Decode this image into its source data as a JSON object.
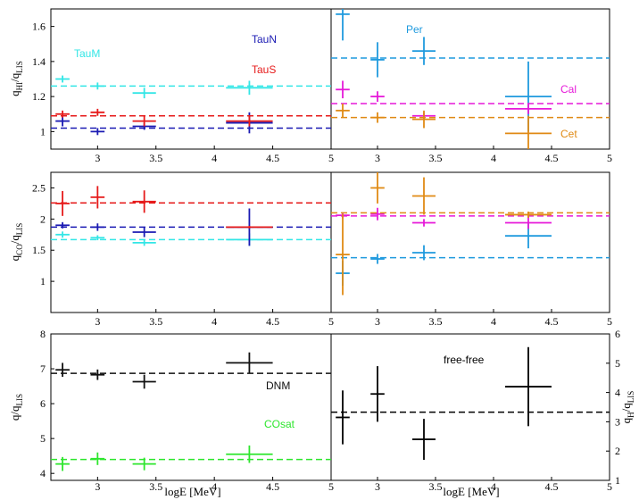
{
  "figure": {
    "xlabel": "logE [MeV]",
    "x_ticks": [
      "3",
      "3.5",
      "4",
      "4.5",
      "5"
    ]
  },
  "colors": {
    "TauM": "#33e6e6",
    "TauN": "#1a1ab3",
    "TauS": "#e61a1a",
    "Per": "#1f9ade",
    "Cal": "#e619d9",
    "Cet": "#e08a14",
    "DNM": "#111111",
    "COsat": "#2ee62e",
    "freefree": "#000000"
  },
  "chart_data": [
    {
      "id": "hi-left",
      "type": "scatter",
      "ylabel_main": "q",
      "ylabel_sub1": "HI",
      "ylabel_mid": "/q",
      "ylabel_sub2": "LIS",
      "xlim": [
        2.6,
        5.0
      ],
      "ylim": [
        0.9,
        1.7
      ],
      "y_ticks": [
        1,
        1.2,
        1.4,
        1.6
      ],
      "y_tick_labels": [
        "1",
        "1.2",
        "1.4",
        "1.6"
      ],
      "series": [
        {
          "name": "TauM",
          "label_text": "TauM",
          "mean": 1.26,
          "points": [
            {
              "x": 2.7,
              "xerr": 0.06,
              "y": 1.3,
              "yerr": 0.02
            },
            {
              "x": 3.0,
              "xerr": 0.06,
              "y": 1.26,
              "yerr": 0.02
            },
            {
              "x": 3.4,
              "xerr": 0.1,
              "y": 1.22,
              "yerr": 0.03
            },
            {
              "x": 4.3,
              "xerr": 0.2,
              "y": 1.25,
              "yerr": 0.04
            }
          ]
        },
        {
          "name": "TauN",
          "label_text": "TauN",
          "mean": 1.02,
          "points": [
            {
              "x": 2.7,
              "xerr": 0.06,
              "y": 1.06,
              "yerr": 0.03
            },
            {
              "x": 3.0,
              "xerr": 0.06,
              "y": 1.0,
              "yerr": 0.02
            },
            {
              "x": 3.4,
              "xerr": 0.1,
              "y": 1.03,
              "yerr": 0.02
            },
            {
              "x": 4.3,
              "xerr": 0.2,
              "y": 1.05,
              "yerr": 0.06
            }
          ]
        },
        {
          "name": "TauS",
          "label_text": "TauS",
          "mean": 1.09,
          "points": [
            {
              "x": 2.7,
              "xerr": 0.06,
              "y": 1.1,
              "yerr": 0.02
            },
            {
              "x": 3.0,
              "xerr": 0.06,
              "y": 1.11,
              "yerr": 0.02
            },
            {
              "x": 3.4,
              "xerr": 0.1,
              "y": 1.06,
              "yerr": 0.03
            },
            {
              "x": 4.3,
              "xerr": 0.2,
              "y": 1.06,
              "yerr": 0.03
            }
          ]
        }
      ]
    },
    {
      "id": "hi-right",
      "type": "scatter",
      "xlim": [
        2.6,
        5.0
      ],
      "ylim": [
        0.9,
        1.7
      ],
      "series": [
        {
          "name": "Per",
          "label_text": "Per",
          "mean": 1.42,
          "points": [
            {
              "x": 2.7,
              "xerr": 0.06,
              "y": 1.67,
              "yerr": 0.15
            },
            {
              "x": 3.0,
              "xerr": 0.06,
              "y": 1.41,
              "yerr": 0.1
            },
            {
              "x": 3.4,
              "xerr": 0.1,
              "y": 1.46,
              "yerr": 0.08
            },
            {
              "x": 4.3,
              "xerr": 0.2,
              "y": 1.2,
              "yerr": 0.2
            }
          ]
        },
        {
          "name": "Cal",
          "label_text": "Cal",
          "mean": 1.16,
          "points": [
            {
              "x": 2.7,
              "xerr": 0.06,
              "y": 1.24,
              "yerr": 0.05
            },
            {
              "x": 3.0,
              "xerr": 0.06,
              "y": 1.2,
              "yerr": 0.03
            },
            {
              "x": 3.4,
              "xerr": 0.1,
              "y": 1.09,
              "yerr": 0.02
            },
            {
              "x": 4.3,
              "xerr": 0.2,
              "y": 1.13,
              "yerr": 0.03
            }
          ]
        },
        {
          "name": "Cet",
          "label_text": "Cet",
          "mean": 1.08,
          "points": [
            {
              "x": 2.7,
              "xerr": 0.06,
              "y": 1.12,
              "yerr": 0.04
            },
            {
              "x": 3.0,
              "xerr": 0.06,
              "y": 1.08,
              "yerr": 0.03
            },
            {
              "x": 3.4,
              "xerr": 0.1,
              "y": 1.07,
              "yerr": 0.05
            },
            {
              "x": 4.3,
              "xerr": 0.2,
              "y": 0.99,
              "yerr": 0.1
            }
          ]
        }
      ]
    },
    {
      "id": "co-left",
      "type": "scatter",
      "ylabel_main": "q",
      "ylabel_sub1": "CO",
      "ylabel_mid": "/q",
      "ylabel_sub2": "LIS",
      "xlim": [
        2.6,
        5.0
      ],
      "ylim": [
        0.5,
        2.75
      ],
      "y_ticks": [
        1,
        1.5,
        2,
        2.5
      ],
      "y_tick_labels": [
        "1",
        "1.5",
        "2",
        "2.5"
      ],
      "series": [
        {
          "name": "TauM",
          "mean": 1.67,
          "points": [
            {
              "x": 2.7,
              "xerr": 0.06,
              "y": 1.75,
              "yerr": 0.05
            },
            {
              "x": 3.0,
              "xerr": 0.06,
              "y": 1.7,
              "yerr": 0.04
            },
            {
              "x": 3.4,
              "xerr": 0.1,
              "y": 1.62,
              "yerr": 0.05
            },
            {
              "x": 4.3,
              "xerr": 0.2,
              "y": 1.67,
              "yerr": 0.1
            }
          ]
        },
        {
          "name": "TauN",
          "mean": 1.87,
          "points": [
            {
              "x": 2.7,
              "xerr": 0.06,
              "y": 1.9,
              "yerr": 0.05
            },
            {
              "x": 3.0,
              "xerr": 0.06,
              "y": 1.87,
              "yerr": 0.06
            },
            {
              "x": 3.4,
              "xerr": 0.1,
              "y": 1.79,
              "yerr": 0.08
            },
            {
              "x": 4.3,
              "xerr": 0.2,
              "y": 1.87,
              "yerr": 0.3
            }
          ]
        },
        {
          "name": "TauS",
          "mean": 2.26,
          "points": [
            {
              "x": 2.7,
              "xerr": 0.06,
              "y": 2.25,
              "yerr": 0.2
            },
            {
              "x": 3.0,
              "xerr": 0.06,
              "y": 2.35,
              "yerr": 0.18
            },
            {
              "x": 3.4,
              "xerr": 0.1,
              "y": 2.28,
              "yerr": 0.18
            },
            {
              "x": 4.3,
              "xerr": 0.2,
              "y": 1.87,
              "yerr": 0.02
            }
          ]
        }
      ]
    },
    {
      "id": "co-right",
      "type": "scatter",
      "xlim": [
        2.6,
        5.0
      ],
      "ylim": [
        0.5,
        2.75
      ],
      "series": [
        {
          "name": "Per",
          "mean": 1.38,
          "points": [
            {
              "x": 2.7,
              "xerr": 0.06,
              "y": 1.13,
              "yerr": 0.2
            },
            {
              "x": 3.0,
              "xerr": 0.06,
              "y": 1.36,
              "yerr": 0.08
            },
            {
              "x": 3.4,
              "xerr": 0.1,
              "y": 1.46,
              "yerr": 0.12
            },
            {
              "x": 4.3,
              "xerr": 0.2,
              "y": 1.73,
              "yerr": 0.2
            }
          ]
        },
        {
          "name": "Cal",
          "mean": 2.05,
          "points": [
            {
              "x": 2.7,
              "xerr": 0.06,
              "y": 2.06,
              "yerr": 0.05
            },
            {
              "x": 3.0,
              "xerr": 0.06,
              "y": 2.08,
              "yerr": 0.1
            },
            {
              "x": 3.4,
              "xerr": 0.1,
              "y": 1.94,
              "yerr": 0.06
            },
            {
              "x": 4.3,
              "xerr": 0.2,
              "y": 1.94,
              "yerr": 0.1
            }
          ]
        },
        {
          "name": "Cet",
          "mean": 2.1,
          "points": [
            {
              "x": 2.7,
              "xerr": 0.06,
              "y": 1.43,
              "yerr": 0.65
            },
            {
              "x": 3.0,
              "xerr": 0.06,
              "y": 2.5,
              "yerr": 0.25
            },
            {
              "x": 3.4,
              "xerr": 0.1,
              "y": 2.37,
              "yerr": 0.3
            },
            {
              "x": 4.3,
              "xerr": 0.2,
              "y": 2.07,
              "yerr": 0.05
            }
          ]
        }
      ]
    },
    {
      "id": "dnm-left",
      "type": "scatter",
      "ylabel_main": "q/q",
      "ylabel_sub2": "LIS",
      "xlim": [
        2.6,
        5.0
      ],
      "ylim": [
        3.8,
        8.0
      ],
      "y_ticks": [
        4,
        5,
        6,
        7,
        8
      ],
      "y_tick_labels": [
        "4",
        "5",
        "6",
        "7",
        "8"
      ],
      "series": [
        {
          "name": "DNM",
          "label_text": "DNM",
          "mean": 6.87,
          "points": [
            {
              "x": 2.7,
              "xerr": 0.06,
              "y": 6.97,
              "yerr": 0.2
            },
            {
              "x": 3.0,
              "xerr": 0.06,
              "y": 6.83,
              "yerr": 0.15
            },
            {
              "x": 3.4,
              "xerr": 0.1,
              "y": 6.63,
              "yerr": 0.2
            },
            {
              "x": 4.3,
              "xerr": 0.2,
              "y": 7.17,
              "yerr": 0.3
            }
          ]
        },
        {
          "name": "COsat",
          "label_text": "COsat",
          "mean": 4.4,
          "points": [
            {
              "x": 2.7,
              "xerr": 0.06,
              "y": 4.27,
              "yerr": 0.2
            },
            {
              "x": 3.0,
              "xerr": 0.06,
              "y": 4.42,
              "yerr": 0.18
            },
            {
              "x": 3.4,
              "xerr": 0.1,
              "y": 4.27,
              "yerr": 0.18
            },
            {
              "x": 4.3,
              "xerr": 0.2,
              "y": 4.55,
              "yerr": 0.25
            }
          ]
        }
      ]
    },
    {
      "id": "ff-right",
      "type": "scatter",
      "ylabel_main": "q",
      "ylabel_sub1": "H",
      "ylabel_mid": "/q",
      "ylabel_sub2": "LIS",
      "xlim": [
        2.6,
        5.0
      ],
      "ylim": [
        1.0,
        6.0
      ],
      "y_ticks": [
        1,
        2,
        3,
        4,
        5,
        6
      ],
      "y_tick_labels": [
        "1",
        "2",
        "3",
        "4",
        "5",
        "6"
      ],
      "series": [
        {
          "name": "freefree",
          "label_text": "free-free",
          "mean": 3.33,
          "points": [
            {
              "x": 2.7,
              "xerr": 0.06,
              "y": 3.15,
              "yerr": 0.92
            },
            {
              "x": 3.0,
              "xerr": 0.06,
              "y": 3.95,
              "yerr": 0.95
            },
            {
              "x": 3.4,
              "xerr": 0.1,
              "y": 2.4,
              "yerr": 0.7
            },
            {
              "x": 4.3,
              "xerr": 0.2,
              "y": 4.2,
              "yerr": 1.35
            }
          ]
        }
      ]
    }
  ]
}
